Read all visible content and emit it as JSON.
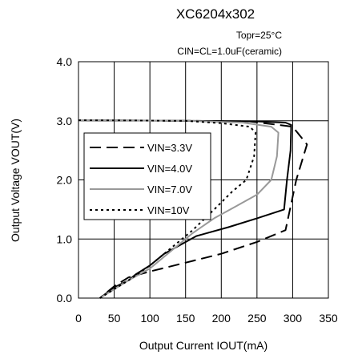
{
  "chart_data": {
    "type": "line",
    "title": "XC6204x302",
    "annotations": [
      "Topr=25°C",
      "CIN=CL=1.0uF(ceramic)"
    ],
    "xlabel": "Output Current IOUT(mA)",
    "ylabel": "Output Voltage VOUT(V)",
    "xlim": [
      0,
      350
    ],
    "ylim": [
      0,
      4
    ],
    "xticks": [
      0,
      50,
      100,
      150,
      200,
      250,
      300,
      350
    ],
    "xtick_labels": [
      "0",
      "50",
      "100",
      "150",
      "200",
      "250",
      "300",
      "350"
    ],
    "yticks": [
      0,
      1,
      2,
      3,
      4
    ],
    "ytick_labels": [
      "0.0",
      "1.0",
      "2.0",
      "3.0",
      "4.0"
    ],
    "grid": true,
    "legend": "upper-left",
    "series": [
      {
        "name": "VIN=3.3V",
        "style": "dashed",
        "color": "#000000",
        "x": [
          0,
          150,
          240,
          300,
          320,
          305,
          290,
          250,
          200,
          150,
          100,
          70,
          50,
          30
        ],
        "y": [
          3.01,
          3.0,
          2.99,
          2.9,
          2.6,
          2.0,
          1.15,
          0.95,
          0.75,
          0.6,
          0.45,
          0.35,
          0.2,
          0.0
        ]
      },
      {
        "name": "VIN=4.0V",
        "style": "solid",
        "color": "#000000",
        "x": [
          0,
          150,
          250,
          290,
          298,
          297,
          292,
          288,
          250,
          210,
          165,
          120,
          100,
          80,
          70,
          50,
          30
        ],
        "y": [
          3.01,
          3.0,
          2.99,
          2.97,
          2.93,
          2.5,
          2.0,
          1.5,
          1.35,
          1.2,
          1.05,
          0.75,
          0.55,
          0.4,
          0.3,
          0.18,
          0.0
        ]
      },
      {
        "name": "VIN=7.0V",
        "style": "solid",
        "color": "#999999",
        "x": [
          0,
          150,
          230,
          270,
          280,
          278,
          270,
          250,
          220,
          190,
          160,
          130,
          100,
          70,
          50,
          30
        ],
        "y": [
          3.01,
          3.0,
          2.97,
          2.9,
          2.8,
          2.4,
          2.0,
          1.75,
          1.55,
          1.35,
          1.1,
          0.8,
          0.5,
          0.3,
          0.15,
          0.0
        ]
      },
      {
        "name": "VIN=10V",
        "style": "dotted",
        "color": "#000000",
        "x": [
          0,
          150,
          200,
          240,
          248,
          246,
          235,
          215,
          190,
          160,
          130,
          100,
          70,
          50,
          30
        ],
        "y": [
          3.01,
          3.0,
          2.96,
          2.9,
          2.8,
          2.4,
          2.0,
          1.8,
          1.5,
          1.15,
          0.85,
          0.55,
          0.3,
          0.15,
          0.0
        ]
      }
    ]
  }
}
